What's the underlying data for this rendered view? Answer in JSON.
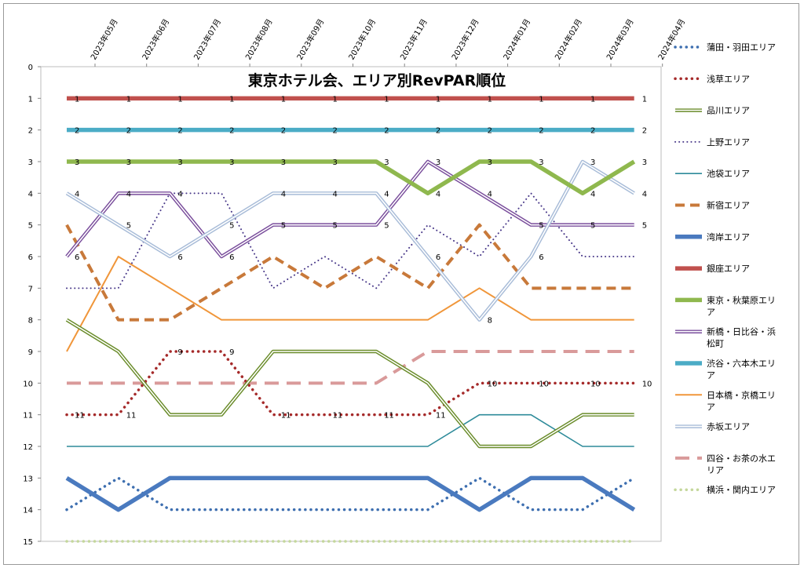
{
  "chart_data": {
    "type": "line",
    "title": "東京ホテル会、エリア別RevPAR順位",
    "categories": [
      "2023年05月",
      "2023年06月",
      "2023年07月",
      "2023年08月",
      "2023年09月",
      "2023年10月",
      "2023年11月",
      "2023年12月",
      "2024年01月",
      "2024年02月",
      "2024年03月",
      "2024年04月"
    ],
    "ylim": [
      0,
      15
    ],
    "yticks": [
      "0",
      "1",
      "2",
      "3",
      "4",
      "5",
      "6",
      "7",
      "8",
      "9",
      "10",
      "11",
      "12",
      "13",
      "14",
      "15"
    ],
    "y_inverted": true,
    "legend_position": "right",
    "series": [
      {
        "name": "蒲田・羽田エリア",
        "values": [
          14,
          13,
          14,
          14,
          14,
          14,
          14,
          14,
          13,
          14,
          14,
          13
        ],
        "color": "#3e6fb0",
        "style": "dot",
        "labeled": false
      },
      {
        "name": "浅草エリア",
        "values": [
          11,
          11,
          9,
          9,
          11,
          11,
          11,
          11,
          10,
          10,
          10,
          10
        ],
        "color": "#a52a2a",
        "style": "dot",
        "labeled": true
      },
      {
        "name": "品川エリア",
        "values": [
          8,
          9,
          11,
          11,
          9,
          9,
          9,
          10,
          12,
          12,
          11,
          11
        ],
        "color": "#6a8c2a",
        "style": "double",
        "labeled": false
      },
      {
        "name": "上野エリア",
        "values": [
          7,
          7,
          4,
          4,
          7,
          6,
          7,
          5,
          6,
          4,
          6,
          6
        ],
        "color": "#4a3a8a",
        "style": "smalldot",
        "labeled": false
      },
      {
        "name": "池袋エリア",
        "values": [
          12,
          12,
          12,
          12,
          12,
          12,
          12,
          12,
          11,
          11,
          12,
          12
        ],
        "color": "#2e8b9a",
        "style": "thin",
        "labeled": false
      },
      {
        "name": "新宿エリア",
        "values": [
          5,
          8,
          8,
          7,
          6,
          7,
          6,
          7,
          5,
          7,
          7,
          7
        ],
        "color": "#c8793a",
        "style": "dash",
        "labeled": false
      },
      {
        "name": "湾岸エリア",
        "values": [
          13,
          14,
          13,
          13,
          13,
          13,
          13,
          13,
          14,
          13,
          13,
          14
        ],
        "color": "#4a7abf",
        "style": "thick",
        "labeled": false
      },
      {
        "name": "銀座エリア",
        "values": [
          1,
          1,
          1,
          1,
          1,
          1,
          1,
          1,
          1,
          1,
          1,
          1
        ],
        "color": "#c0504d",
        "style": "thick",
        "labeled": true
      },
      {
        "name": "東京・秋葉原エリア",
        "values": [
          3,
          3,
          3,
          3,
          3,
          3,
          3,
          4,
          3,
          3,
          4,
          3
        ],
        "color": "#8fb84e",
        "style": "thick",
        "labeled": true
      },
      {
        "name": "新橋・日比谷・浜松町",
        "values": [
          6,
          4,
          4,
          6,
          5,
          5,
          5,
          3,
          4,
          5,
          5,
          5
        ],
        "color": "#7a4e9c",
        "style": "double",
        "labeled": true
      },
      {
        "name": "渋谷・六本木エリア",
        "values": [
          2,
          2,
          2,
          2,
          2,
          2,
          2,
          2,
          2,
          2,
          2,
          2
        ],
        "color": "#4bacc6",
        "style": "thick",
        "labeled": true
      },
      {
        "name": "日本橋・京橋エリア",
        "values": [
          9,
          6,
          7,
          8,
          8,
          8,
          8,
          8,
          7,
          8,
          8,
          8
        ],
        "color": "#f0963a",
        "style": "medium",
        "labeled": false
      },
      {
        "name": "赤坂エリア",
        "values": [
          4,
          5,
          6,
          5,
          4,
          4,
          4,
          6,
          8,
          6,
          3,
          4
        ],
        "color": "#a8bcd8",
        "style": "double",
        "labeled": true
      },
      {
        "name": "四谷・お茶の水エリア",
        "values": [
          10,
          10,
          10,
          10,
          10,
          10,
          10,
          9,
          9,
          9,
          9,
          9
        ],
        "color": "#d99a9a",
        "style": "longdash",
        "labeled": false
      },
      {
        "name": "横浜・関内エリア",
        "values": [
          15,
          15,
          15,
          15,
          15,
          15,
          15,
          15,
          15,
          15,
          15,
          15
        ],
        "color": "#c4d79b",
        "style": "dot",
        "labeled": false
      }
    ]
  }
}
